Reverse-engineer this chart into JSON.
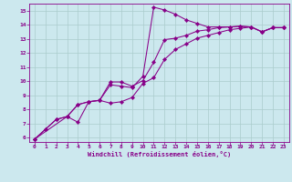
{
  "xlabel": "Windchill (Refroidissement éolien,°C)",
  "bg_color": "#cce8ee",
  "line_color": "#880088",
  "grid_color": "#aacccc",
  "xlim": [
    -0.5,
    23.5
  ],
  "ylim": [
    5.7,
    15.5
  ],
  "xticks": [
    0,
    1,
    2,
    3,
    4,
    5,
    6,
    7,
    8,
    9,
    10,
    11,
    12,
    13,
    14,
    15,
    16,
    17,
    18,
    19,
    20,
    21,
    22,
    23
  ],
  "yticks": [
    6,
    7,
    8,
    9,
    10,
    11,
    12,
    13,
    14,
    15
  ],
  "curve1_x": [
    0,
    1,
    2,
    3,
    4,
    5,
    6,
    7,
    8,
    9,
    10,
    11,
    12,
    13,
    14,
    15,
    16,
    17,
    18,
    19,
    20,
    21,
    22,
    23
  ],
  "curve1_y": [
    5.9,
    6.6,
    7.3,
    7.5,
    8.35,
    8.55,
    8.65,
    9.75,
    9.65,
    9.55,
    10.35,
    15.25,
    15.05,
    14.75,
    14.35,
    14.1,
    13.85,
    13.85,
    13.85,
    13.9,
    13.85,
    13.5,
    13.8,
    13.8
  ],
  "curve2_x": [
    0,
    1,
    2,
    3,
    4,
    5,
    6,
    7,
    8,
    9,
    10,
    11,
    12,
    13,
    14,
    15,
    16,
    17,
    18,
    19,
    20,
    21,
    22,
    23
  ],
  "curve2_y": [
    5.9,
    6.6,
    7.3,
    7.5,
    8.35,
    8.55,
    8.65,
    9.95,
    9.95,
    9.65,
    10.05,
    11.35,
    12.95,
    13.05,
    13.25,
    13.55,
    13.65,
    13.8,
    13.85,
    13.9,
    13.85,
    13.5,
    13.8,
    13.8
  ],
  "curve3_x": [
    0,
    3,
    4,
    5,
    6,
    7,
    8,
    9,
    10,
    11,
    12,
    13,
    14,
    15,
    16,
    17,
    18,
    19,
    20,
    21,
    22,
    23
  ],
  "curve3_y": [
    5.9,
    7.5,
    7.1,
    8.55,
    8.65,
    8.45,
    8.55,
    8.85,
    9.85,
    10.25,
    11.55,
    12.25,
    12.65,
    13.05,
    13.25,
    13.45,
    13.65,
    13.75,
    13.85,
    13.5,
    13.8,
    13.8
  ]
}
